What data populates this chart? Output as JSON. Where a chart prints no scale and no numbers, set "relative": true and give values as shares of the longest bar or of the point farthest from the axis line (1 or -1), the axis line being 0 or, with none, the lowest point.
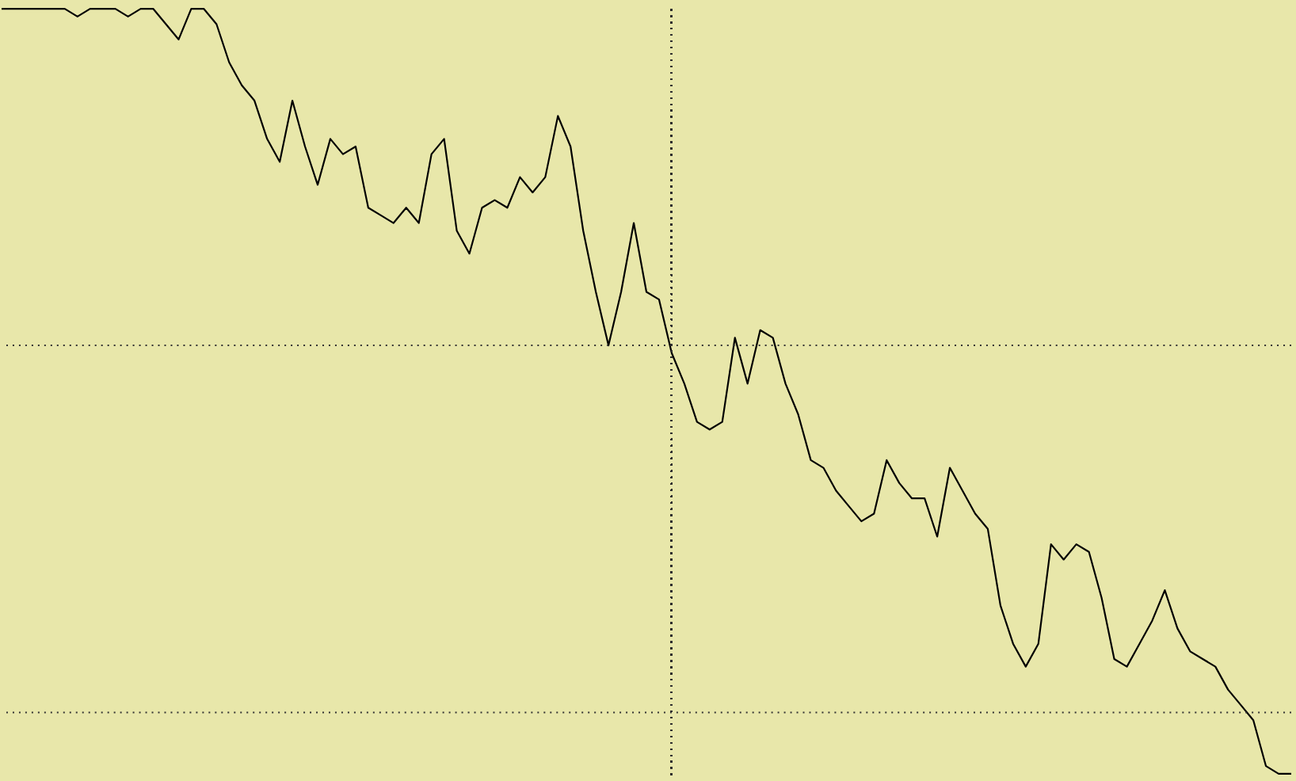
{
  "chart_data": {
    "type": "line",
    "relative": true,
    "color": "#000000",
    "line_style": "solid",
    "marker": "none",
    "grid": "x",
    "tick_labels": false,
    "categories": [
      null,
      null,
      null,
      null,
      null,
      null,
      null,
      null,
      null,
      null,
      null,
      null,
      null,
      null,
      null,
      null,
      null,
      null,
      null,
      null,
      null,
      null,
      null,
      null,
      null,
      null,
      null,
      null,
      null,
      null,
      null,
      null,
      null,
      null,
      null,
      null,
      null,
      null,
      null,
      null,
      null,
      null,
      null,
      null,
      null,
      null,
      null,
      null,
      null,
      null,
      null,
      null,
      null,
      null,
      null,
      null,
      null,
      null,
      null,
      null,
      null,
      null,
      null,
      null,
      null,
      null,
      null,
      null,
      null,
      null,
      null,
      null,
      null,
      null,
      null,
      null,
      null,
      null,
      null,
      null,
      null,
      null,
      null,
      null,
      null,
      null,
      null,
      null,
      null,
      null,
      null,
      null,
      null,
      null,
      null,
      null,
      null,
      null,
      null,
      null,
      null,
      null,
      null
    ],
    "values": [
      1.0,
      1.0,
      1.0,
      1.0,
      1.0,
      1.0,
      0.99,
      1.0,
      1.0,
      1.0,
      0.99,
      1.0,
      1.0,
      0.98,
      0.96,
      1.0,
      1.0,
      0.98,
      0.93,
      0.9,
      0.88,
      0.83,
      0.8,
      0.88,
      0.82,
      0.77,
      0.83,
      0.81,
      0.82,
      0.74,
      0.73,
      0.72,
      0.74,
      0.72,
      0.81,
      0.83,
      0.71,
      0.68,
      0.74,
      0.75,
      0.74,
      0.78,
      0.76,
      0.78,
      0.86,
      0.82,
      0.71,
      0.63,
      0.56,
      0.63,
      0.72,
      0.63,
      0.62,
      0.55,
      0.51,
      0.46,
      0.45,
      0.46,
      0.57,
      0.51,
      0.58,
      0.57,
      0.51,
      0.47,
      0.41,
      0.4,
      0.37,
      0.35,
      0.33,
      0.34,
      0.41,
      0.38,
      0.36,
      0.36,
      0.31,
      0.4,
      0.37,
      0.34,
      0.32,
      0.22,
      0.17,
      0.14,
      0.17,
      0.3,
      0.28,
      0.3,
      0.29,
      0.23,
      0.15,
      0.14,
      0.17,
      0.2,
      0.24,
      0.19,
      0.16,
      0.15,
      0.14,
      0.11,
      0.09,
      0.07,
      0.01,
      0.0,
      0.0
    ],
    "ref_lines": [
      {
        "axis": "y",
        "value": 0.56,
        "line_style": "dotted",
        "color": "#333333"
      },
      {
        "axis": "y",
        "value": 0.08,
        "line_style": "dotted",
        "color": "#333333"
      }
    ]
  }
}
